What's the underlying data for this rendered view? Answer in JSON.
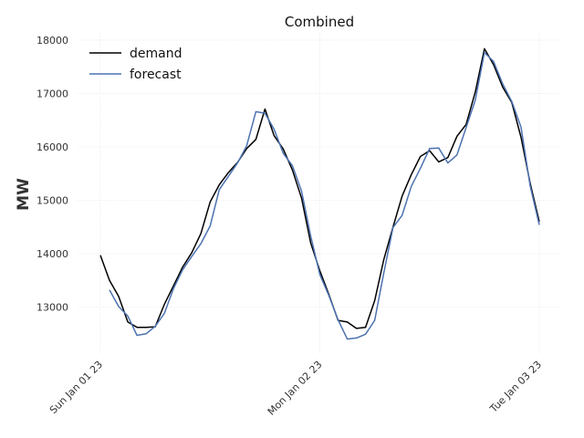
{
  "chart_data": {
    "type": "line",
    "title": "Combined",
    "xlabel": "",
    "ylabel": "MW",
    "xlim": [
      0,
      48
    ],
    "ylim": [
      12150,
      18100
    ],
    "xticks": [
      {
        "x": 0,
        "label": "Sun Jan 01 23"
      },
      {
        "x": 24,
        "label": "Mon Jan 02 23"
      },
      {
        "x": 48,
        "label": "Tue Jan 03 23"
      }
    ],
    "yticks": [
      13000,
      14000,
      15000,
      16000,
      17000,
      18000
    ],
    "ytick_labels": [
      "13000",
      "14000",
      "15000",
      "16000",
      "17000",
      "18000"
    ],
    "grid": true,
    "legend_position": "top-left",
    "series": [
      {
        "name": "demand",
        "color": "#000000",
        "x": [
          0,
          1,
          2,
          3,
          4,
          5,
          6,
          7,
          8,
          9,
          10,
          11,
          12,
          13,
          14,
          15,
          16,
          17,
          18,
          19,
          20,
          21,
          22,
          23,
          24,
          25,
          26,
          27,
          28,
          29,
          30,
          31,
          32,
          33,
          34,
          35,
          36,
          37,
          38,
          39,
          40,
          41,
          42,
          43,
          44,
          45,
          46,
          47,
          48
        ],
        "y": [
          13970,
          13500,
          13200,
          12720,
          12620,
          12620,
          12630,
          13050,
          13400,
          13750,
          14020,
          14380,
          14970,
          15290,
          15520,
          15710,
          15970,
          16140,
          16710,
          16210,
          15960,
          15570,
          15040,
          14200,
          13680,
          13230,
          12750,
          12720,
          12600,
          12620,
          13120,
          13890,
          14500,
          15080,
          15480,
          15820,
          15930,
          15720,
          15800,
          16200,
          16420,
          17030,
          17840,
          17540,
          17120,
          16830,
          16180,
          15320,
          14600
        ]
      },
      {
        "name": "forecast",
        "color": "#4c72b0",
        "x": [
          1,
          2,
          3,
          4,
          5,
          6,
          7,
          8,
          9,
          10,
          11,
          12,
          13,
          14,
          15,
          16,
          17,
          18,
          19,
          20,
          21,
          22,
          23,
          24,
          25,
          26,
          27,
          28,
          29,
          30,
          31,
          32,
          33,
          34,
          35,
          36,
          37,
          38,
          39,
          40,
          41,
          42,
          43,
          44,
          45,
          46,
          47,
          48
        ],
        "y": [
          13320,
          13010,
          12830,
          12470,
          12500,
          12640,
          12880,
          13350,
          13700,
          13950,
          14190,
          14520,
          15200,
          15450,
          15700,
          16020,
          16660,
          16630,
          16330,
          15880,
          15650,
          15170,
          14330,
          13610,
          13210,
          12760,
          12400,
          12420,
          12490,
          12750,
          13640,
          14490,
          14720,
          15260,
          15600,
          15970,
          15980,
          15700,
          15850,
          16360,
          16880,
          17770,
          17600,
          17180,
          16850,
          16370,
          15270,
          14540
        ]
      }
    ]
  }
}
